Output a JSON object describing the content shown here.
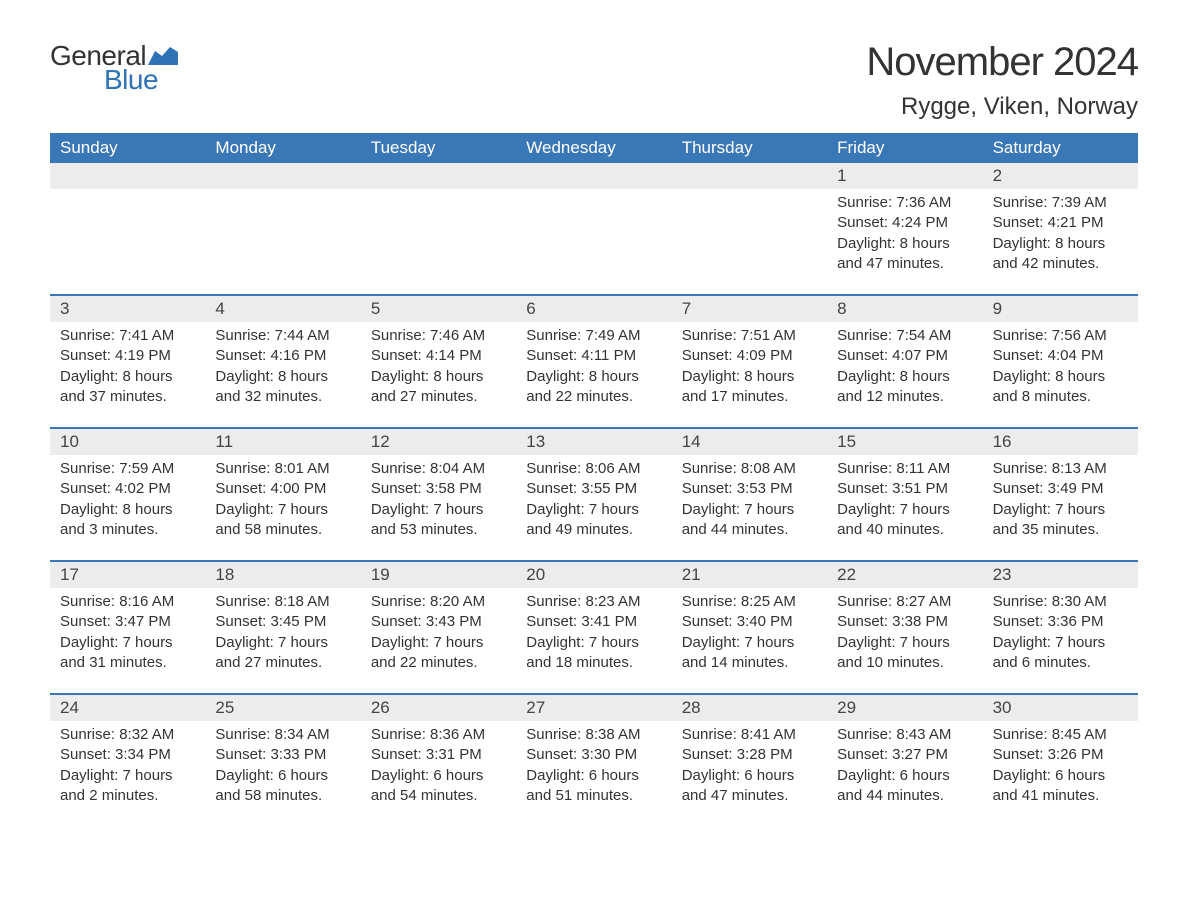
{
  "logo": {
    "text_general": "General",
    "text_blue": "Blue",
    "flag_color": "#2f72b6"
  },
  "title": "November 2024",
  "location": "Rygge, Viken, Norway",
  "colors": {
    "header_bg": "#3a77b6",
    "header_text": "#ffffff",
    "day_bar_bg": "#ececec",
    "week_border": "#3a77b6",
    "body_text": "#333333",
    "logo_blue": "#2f72b6"
  },
  "weekdays": [
    "Sunday",
    "Monday",
    "Tuesday",
    "Wednesday",
    "Thursday",
    "Friday",
    "Saturday"
  ],
  "weeks": [
    [
      null,
      null,
      null,
      null,
      null,
      {
        "day": "1",
        "sunrise": "Sunrise: 7:36 AM",
        "sunset": "Sunset: 4:24 PM",
        "daylight1": "Daylight: 8 hours",
        "daylight2": "and 47 minutes."
      },
      {
        "day": "2",
        "sunrise": "Sunrise: 7:39 AM",
        "sunset": "Sunset: 4:21 PM",
        "daylight1": "Daylight: 8 hours",
        "daylight2": "and 42 minutes."
      }
    ],
    [
      {
        "day": "3",
        "sunrise": "Sunrise: 7:41 AM",
        "sunset": "Sunset: 4:19 PM",
        "daylight1": "Daylight: 8 hours",
        "daylight2": "and 37 minutes."
      },
      {
        "day": "4",
        "sunrise": "Sunrise: 7:44 AM",
        "sunset": "Sunset: 4:16 PM",
        "daylight1": "Daylight: 8 hours",
        "daylight2": "and 32 minutes."
      },
      {
        "day": "5",
        "sunrise": "Sunrise: 7:46 AM",
        "sunset": "Sunset: 4:14 PM",
        "daylight1": "Daylight: 8 hours",
        "daylight2": "and 27 minutes."
      },
      {
        "day": "6",
        "sunrise": "Sunrise: 7:49 AM",
        "sunset": "Sunset: 4:11 PM",
        "daylight1": "Daylight: 8 hours",
        "daylight2": "and 22 minutes."
      },
      {
        "day": "7",
        "sunrise": "Sunrise: 7:51 AM",
        "sunset": "Sunset: 4:09 PM",
        "daylight1": "Daylight: 8 hours",
        "daylight2": "and 17 minutes."
      },
      {
        "day": "8",
        "sunrise": "Sunrise: 7:54 AM",
        "sunset": "Sunset: 4:07 PM",
        "daylight1": "Daylight: 8 hours",
        "daylight2": "and 12 minutes."
      },
      {
        "day": "9",
        "sunrise": "Sunrise: 7:56 AM",
        "sunset": "Sunset: 4:04 PM",
        "daylight1": "Daylight: 8 hours",
        "daylight2": "and 8 minutes."
      }
    ],
    [
      {
        "day": "10",
        "sunrise": "Sunrise: 7:59 AM",
        "sunset": "Sunset: 4:02 PM",
        "daylight1": "Daylight: 8 hours",
        "daylight2": "and 3 minutes."
      },
      {
        "day": "11",
        "sunrise": "Sunrise: 8:01 AM",
        "sunset": "Sunset: 4:00 PM",
        "daylight1": "Daylight: 7 hours",
        "daylight2": "and 58 minutes."
      },
      {
        "day": "12",
        "sunrise": "Sunrise: 8:04 AM",
        "sunset": "Sunset: 3:58 PM",
        "daylight1": "Daylight: 7 hours",
        "daylight2": "and 53 minutes."
      },
      {
        "day": "13",
        "sunrise": "Sunrise: 8:06 AM",
        "sunset": "Sunset: 3:55 PM",
        "daylight1": "Daylight: 7 hours",
        "daylight2": "and 49 minutes."
      },
      {
        "day": "14",
        "sunrise": "Sunrise: 8:08 AM",
        "sunset": "Sunset: 3:53 PM",
        "daylight1": "Daylight: 7 hours",
        "daylight2": "and 44 minutes."
      },
      {
        "day": "15",
        "sunrise": "Sunrise: 8:11 AM",
        "sunset": "Sunset: 3:51 PM",
        "daylight1": "Daylight: 7 hours",
        "daylight2": "and 40 minutes."
      },
      {
        "day": "16",
        "sunrise": "Sunrise: 8:13 AM",
        "sunset": "Sunset: 3:49 PM",
        "daylight1": "Daylight: 7 hours",
        "daylight2": "and 35 minutes."
      }
    ],
    [
      {
        "day": "17",
        "sunrise": "Sunrise: 8:16 AM",
        "sunset": "Sunset: 3:47 PM",
        "daylight1": "Daylight: 7 hours",
        "daylight2": "and 31 minutes."
      },
      {
        "day": "18",
        "sunrise": "Sunrise: 8:18 AM",
        "sunset": "Sunset: 3:45 PM",
        "daylight1": "Daylight: 7 hours",
        "daylight2": "and 27 minutes."
      },
      {
        "day": "19",
        "sunrise": "Sunrise: 8:20 AM",
        "sunset": "Sunset: 3:43 PM",
        "daylight1": "Daylight: 7 hours",
        "daylight2": "and 22 minutes."
      },
      {
        "day": "20",
        "sunrise": "Sunrise: 8:23 AM",
        "sunset": "Sunset: 3:41 PM",
        "daylight1": "Daylight: 7 hours",
        "daylight2": "and 18 minutes."
      },
      {
        "day": "21",
        "sunrise": "Sunrise: 8:25 AM",
        "sunset": "Sunset: 3:40 PM",
        "daylight1": "Daylight: 7 hours",
        "daylight2": "and 14 minutes."
      },
      {
        "day": "22",
        "sunrise": "Sunrise: 8:27 AM",
        "sunset": "Sunset: 3:38 PM",
        "daylight1": "Daylight: 7 hours",
        "daylight2": "and 10 minutes."
      },
      {
        "day": "23",
        "sunrise": "Sunrise: 8:30 AM",
        "sunset": "Sunset: 3:36 PM",
        "daylight1": "Daylight: 7 hours",
        "daylight2": "and 6 minutes."
      }
    ],
    [
      {
        "day": "24",
        "sunrise": "Sunrise: 8:32 AM",
        "sunset": "Sunset: 3:34 PM",
        "daylight1": "Daylight: 7 hours",
        "daylight2": "and 2 minutes."
      },
      {
        "day": "25",
        "sunrise": "Sunrise: 8:34 AM",
        "sunset": "Sunset: 3:33 PM",
        "daylight1": "Daylight: 6 hours",
        "daylight2": "and 58 minutes."
      },
      {
        "day": "26",
        "sunrise": "Sunrise: 8:36 AM",
        "sunset": "Sunset: 3:31 PM",
        "daylight1": "Daylight: 6 hours",
        "daylight2": "and 54 minutes."
      },
      {
        "day": "27",
        "sunrise": "Sunrise: 8:38 AM",
        "sunset": "Sunset: 3:30 PM",
        "daylight1": "Daylight: 6 hours",
        "daylight2": "and 51 minutes."
      },
      {
        "day": "28",
        "sunrise": "Sunrise: 8:41 AM",
        "sunset": "Sunset: 3:28 PM",
        "daylight1": "Daylight: 6 hours",
        "daylight2": "and 47 minutes."
      },
      {
        "day": "29",
        "sunrise": "Sunrise: 8:43 AM",
        "sunset": "Sunset: 3:27 PM",
        "daylight1": "Daylight: 6 hours",
        "daylight2": "and 44 minutes."
      },
      {
        "day": "30",
        "sunrise": "Sunrise: 8:45 AM",
        "sunset": "Sunset: 3:26 PM",
        "daylight1": "Daylight: 6 hours",
        "daylight2": "and 41 minutes."
      }
    ]
  ]
}
